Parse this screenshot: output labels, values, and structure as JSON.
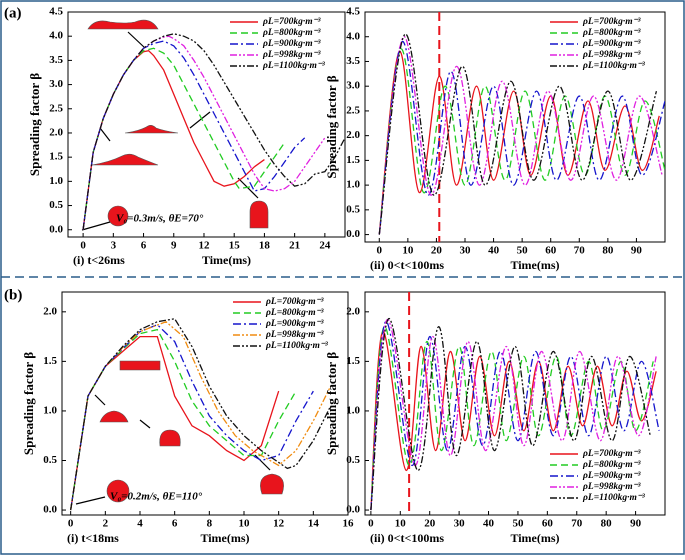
{
  "panel_labels": [
    "(a)",
    "(b)"
  ],
  "chart_data": [
    {
      "type": "line",
      "caption": "(i) t<26ms",
      "xlabel": "Time(ms)",
      "ylabel": "Spreading factor β",
      "annotation": "V₀=0.3m/s, θE=70°",
      "xlim": [
        -1.5,
        26
      ],
      "ylim": [
        -0.15,
        4.5
      ],
      "xticks": [
        0,
        3,
        6,
        9,
        12,
        15,
        18,
        21,
        24
      ],
      "yticks": [
        {
          "value": 0,
          "label": "0.0"
        },
        0.5,
        {
          "value": 1,
          "label": "1.0"
        },
        1.5,
        {
          "value": 2,
          "label": "2.0"
        },
        2.5,
        {
          "value": 3,
          "label": "3.0"
        },
        3.5,
        {
          "value": 4,
          "label": "4.0"
        },
        4.5
      ],
      "legend": "upper right",
      "smooth": false,
      "series": [
        {
          "name": "ρL=700kg·m⁻³",
          "color": "#e8141c",
          "dash": "solid",
          "x": [
            0,
            1,
            2,
            3,
            4,
            5,
            6,
            6.5,
            7,
            8,
            9,
            10,
            11,
            12,
            13,
            14,
            15,
            16,
            17,
            18
          ],
          "values": [
            0,
            1.6,
            2.3,
            2.8,
            3.2,
            3.5,
            3.68,
            3.7,
            3.6,
            3.3,
            2.8,
            2.3,
            1.8,
            1.4,
            1.0,
            0.9,
            0.95,
            1.1,
            1.3,
            1.45
          ]
        },
        {
          "name": "ρL=800kg·m⁻³",
          "color": "#22cc22",
          "dash": "dashed",
          "x": [
            0,
            1,
            2,
            3,
            4,
            5,
            6,
            7,
            8,
            9,
            10,
            11,
            12,
            13,
            14,
            15,
            15.5,
            17,
            18,
            19,
            20
          ],
          "values": [
            0,
            1.6,
            2.3,
            2.8,
            3.2,
            3.5,
            3.7,
            3.75,
            3.65,
            3.4,
            3.0,
            2.6,
            2.2,
            1.8,
            1.4,
            1.0,
            0.85,
            0.9,
            1.2,
            1.5,
            1.8
          ]
        },
        {
          "name": "ρL=900kg·m⁻³",
          "color": "#1515cc",
          "dash": "dashdot",
          "x": [
            0,
            1,
            2,
            3,
            4,
            5,
            6,
            7,
            8,
            9,
            10,
            11,
            12,
            13,
            14,
            15,
            16,
            17,
            18,
            19,
            20,
            21,
            22
          ],
          "values": [
            0,
            1.6,
            2.3,
            2.8,
            3.2,
            3.5,
            3.75,
            3.85,
            3.9,
            3.8,
            3.55,
            3.2,
            2.8,
            2.4,
            2.0,
            1.6,
            1.2,
            0.8,
            0.85,
            1.1,
            1.4,
            1.7,
            1.9
          ]
        },
        {
          "name": "ρL=998kg·m⁻³",
          "color": "#e020e0",
          "dash": "dashdotdot",
          "x": [
            0,
            1,
            2,
            3,
            4,
            5,
            6,
            7,
            8,
            8.5,
            9,
            10,
            11,
            12,
            13,
            14,
            15,
            16,
            17,
            18,
            19,
            20,
            21,
            22,
            23,
            24
          ],
          "values": [
            0,
            1.6,
            2.3,
            2.8,
            3.2,
            3.5,
            3.75,
            3.9,
            3.98,
            4.0,
            3.95,
            3.8,
            3.5,
            3.15,
            2.75,
            2.35,
            1.95,
            1.55,
            1.15,
            0.85,
            0.8,
            0.85,
            1.0,
            1.3,
            1.6,
            1.9
          ]
        },
        {
          "name": "ρL=1100kg·m⁻³",
          "color": "#111111",
          "dash": "dashdotdot",
          "x": [
            0,
            1,
            2,
            3,
            4,
            5,
            6,
            7,
            8,
            9,
            10,
            11,
            12,
            13,
            14,
            15,
            16,
            17,
            18,
            19,
            20,
            21,
            22,
            23,
            24,
            25,
            26
          ],
          "values": [
            0,
            1.6,
            2.3,
            2.8,
            3.2,
            3.5,
            3.75,
            3.9,
            4.0,
            4.05,
            4.0,
            3.9,
            3.7,
            3.4,
            3.05,
            2.7,
            2.35,
            2.0,
            1.65,
            1.35,
            1.1,
            0.9,
            0.95,
            1.15,
            1.2,
            1.5,
            1.9
          ]
        }
      ]
    },
    {
      "type": "line",
      "caption": "(ii) 0<t<100ms",
      "xlabel": "Time(ms)",
      "ylabel": "Spreading factor β",
      "xlim": [
        -5,
        100
      ],
      "ylim": [
        -0.15,
        4.5
      ],
      "xticks": [
        0,
        10,
        20,
        30,
        40,
        50,
        60,
        70,
        80,
        90
      ],
      "yticks": [
        {
          "value": 0,
          "label": "0.0"
        },
        0.5,
        {
          "value": 1,
          "label": "1.0"
        },
        1.5,
        {
          "value": 2,
          "label": "2.0"
        },
        2.5,
        {
          "value": 3,
          "label": "3.0"
        },
        3.5,
        {
          "value": 4,
          "label": "4.0"
        },
        4.5
      ],
      "legend": "upper right",
      "smooth": true,
      "vline": 21,
      "vline_color": "#e8141c",
      "series": [
        {
          "name": "ρL=700kg·m⁻³",
          "color": "#e8141c",
          "dash": "solid",
          "x": [
            0,
            7,
            14,
            21,
            27,
            34,
            40,
            47,
            53,
            60,
            66,
            73,
            79,
            86,
            92,
            98
          ],
          "values": [
            0,
            3.7,
            0.85,
            3.2,
            1.0,
            3.0,
            1.1,
            2.9,
            1.2,
            2.8,
            1.2,
            2.7,
            1.3,
            2.6,
            1.3,
            2.4
          ]
        },
        {
          "name": "ρL=800kg·m⁻³",
          "color": "#22cc22",
          "dash": "dashed",
          "x": [
            0,
            7.5,
            15.5,
            23,
            30,
            37,
            44,
            51,
            58,
            65,
            72,
            79,
            86,
            93,
            100
          ],
          "values": [
            0,
            3.75,
            0.85,
            3.0,
            1.0,
            3.0,
            1.1,
            2.9,
            1.1,
            2.8,
            1.2,
            2.8,
            1.2,
            2.7,
            1.3
          ]
        },
        {
          "name": "ρL=900kg·m⁻³",
          "color": "#1515cc",
          "dash": "dashdot",
          "x": [
            0,
            8,
            17,
            25,
            32,
            40,
            47,
            55,
            62,
            70,
            77,
            85,
            92,
            100
          ],
          "values": [
            0,
            3.9,
            0.8,
            3.3,
            1.0,
            3.0,
            1.0,
            2.9,
            1.1,
            2.8,
            1.1,
            2.8,
            1.2,
            2.7
          ]
        },
        {
          "name": "ρL=998kg·m⁻³",
          "color": "#e020e0",
          "dash": "dashdotdot",
          "x": [
            0,
            8.5,
            18,
            27,
            35,
            43,
            51,
            59,
            67,
            75,
            83,
            91,
            99
          ],
          "values": [
            0,
            4.0,
            0.8,
            3.4,
            1.0,
            3.1,
            1.0,
            2.9,
            1.1,
            2.8,
            1.1,
            2.8,
            1.2
          ]
        },
        {
          "name": "ρL=1100kg·m⁻³",
          "color": "#111111",
          "dash": "dashdotdot",
          "x": [
            0,
            9,
            19,
            29,
            37,
            46,
            54,
            63,
            71,
            80,
            88,
            97
          ],
          "values": [
            0,
            4.05,
            0.8,
            3.4,
            1.0,
            3.1,
            1.1,
            3.0,
            1.1,
            2.9,
            1.1,
            2.9
          ]
        }
      ]
    },
    {
      "type": "line",
      "caption": "(i) t<18ms",
      "xlabel": "Time(ms)",
      "ylabel": "Spreading factor β",
      "annotation": "V₀=0.2m/s, θE=110°",
      "xlim": [
        -0.5,
        16
      ],
      "ylim": [
        -0.05,
        2.2
      ],
      "xticks": [
        0,
        2,
        4,
        6,
        8,
        10,
        12,
        14,
        16
      ],
      "yticks": [
        {
          "value": 0,
          "label": "0.0"
        },
        0.5,
        {
          "value": 1,
          "label": "1.0"
        },
        1.5,
        {
          "value": 2,
          "label": "2.0"
        }
      ],
      "legend": "upper right",
      "smooth": false,
      "series": [
        {
          "name": "ρL=700kg·m⁻³",
          "color": "#e8141c",
          "dash": "solid",
          "x": [
            0,
            1,
            2,
            3,
            4,
            5,
            6,
            7,
            8,
            9,
            10,
            11,
            12
          ],
          "values": [
            0,
            1.15,
            1.45,
            1.6,
            1.75,
            1.75,
            1.15,
            0.85,
            0.75,
            0.6,
            0.5,
            0.65,
            1.2
          ]
        },
        {
          "name": "ρL=800kg·m⁻³",
          "color": "#22cc22",
          "dash": "dashed",
          "x": [
            0,
            1,
            2,
            3,
            4,
            5,
            6,
            7,
            8,
            9,
            10,
            11,
            12,
            13
          ],
          "values": [
            0,
            1.15,
            1.45,
            1.62,
            1.78,
            1.82,
            1.5,
            1.1,
            0.85,
            0.7,
            0.55,
            0.55,
            0.9,
            1.2
          ]
        },
        {
          "name": "ρL=900kg·m⁻³",
          "color": "#1515cc",
          "dash": "dashdot",
          "x": [
            0,
            1,
            2,
            3,
            4,
            5,
            6,
            7,
            8,
            9,
            10,
            11,
            12,
            13,
            14
          ],
          "values": [
            0,
            1.15,
            1.45,
            1.63,
            1.8,
            1.87,
            1.7,
            1.3,
            0.95,
            0.75,
            0.6,
            0.5,
            0.55,
            0.9,
            1.2
          ]
        },
        {
          "name": "ρL=998kg·m⁻³",
          "color": "#f08c10",
          "dash": "dashdotdot",
          "x": [
            0,
            1,
            2,
            3,
            4,
            5.5,
            6.5,
            7.5,
            8.5,
            9.5,
            10.5,
            12,
            13,
            14,
            15
          ],
          "values": [
            0,
            1.15,
            1.45,
            1.64,
            1.8,
            1.9,
            1.75,
            1.35,
            1.0,
            0.75,
            0.6,
            0.45,
            0.6,
            0.9,
            1.25
          ]
        },
        {
          "name": "ρL=1100kg·m⁻³",
          "color": "#111111",
          "dash": "dashdotdot",
          "x": [
            0,
            1,
            2,
            3,
            4,
            5,
            6,
            7,
            8,
            9,
            10,
            11,
            12.5,
            13,
            14,
            15
          ],
          "values": [
            0,
            1.15,
            1.45,
            1.65,
            1.82,
            1.9,
            1.93,
            1.65,
            1.25,
            0.95,
            0.75,
            0.6,
            0.42,
            0.45,
            0.7,
            1.05
          ]
        }
      ]
    },
    {
      "type": "line",
      "caption": "(ii) 0<t<100ms",
      "xlabel": "Time(ms)",
      "ylabel": "Spreading factor β",
      "xlim": [
        -2,
        100
      ],
      "ylim": [
        -0.05,
        2.2
      ],
      "xticks": [
        0,
        10,
        20,
        30,
        40,
        50,
        60,
        70,
        80,
        90
      ],
      "yticks": [
        {
          "value": 0,
          "label": "0.0"
        },
        0.5,
        {
          "value": 1,
          "label": "1.0"
        },
        1.5,
        {
          "value": 2,
          "label": "2.0"
        }
      ],
      "legend": "lower right",
      "smooth": true,
      "vline": 13,
      "vline_color": "#e8141c",
      "series": [
        {
          "name": "ρL=700kg·m⁻³",
          "color": "#e8141c",
          "dash": "solid",
          "x": [
            0,
            4,
            12,
            17,
            22,
            27,
            32,
            37,
            42,
            47,
            52,
            57,
            62,
            67,
            72,
            77,
            82,
            87,
            92,
            97
          ],
          "values": [
            0,
            1.8,
            0.4,
            1.65,
            0.6,
            1.6,
            0.7,
            1.55,
            0.75,
            1.5,
            0.8,
            1.5,
            0.8,
            1.45,
            0.85,
            1.45,
            0.85,
            1.4,
            0.9,
            1.4
          ]
        },
        {
          "name": "ρL=800kg·m⁻³",
          "color": "#22cc22",
          "dash": "dashed",
          "x": [
            0,
            4.5,
            13,
            19,
            24,
            30,
            35,
            41,
            46,
            52,
            57,
            63,
            68,
            74,
            79,
            85,
            90,
            96
          ],
          "values": [
            0,
            1.85,
            0.45,
            1.7,
            0.6,
            1.65,
            0.65,
            1.6,
            0.7,
            1.55,
            0.75,
            1.55,
            0.75,
            1.5,
            0.8,
            1.5,
            0.8,
            1.5
          ]
        },
        {
          "name": "ρL=900kg·m⁻³",
          "color": "#1515cc",
          "dash": "dashdot",
          "x": [
            0,
            5,
            14,
            20,
            26,
            32,
            38,
            44,
            50,
            56,
            62,
            68,
            74,
            80,
            86,
            92,
            98
          ],
          "values": [
            0,
            1.9,
            0.45,
            1.75,
            0.6,
            1.65,
            0.65,
            1.6,
            0.7,
            1.6,
            0.75,
            1.55,
            0.75,
            1.55,
            0.8,
            1.5,
            0.8
          ]
        },
        {
          "name": "ρL=998kg·m⁻³",
          "color": "#e020e0",
          "dash": "dashdotdot",
          "x": [
            0,
            5.5,
            15,
            21,
            27,
            33,
            39,
            46,
            52,
            58,
            65,
            71,
            78,
            84,
            91,
            97
          ],
          "values": [
            0,
            1.92,
            0.45,
            1.75,
            0.55,
            1.7,
            0.6,
            1.65,
            0.65,
            1.6,
            0.7,
            1.6,
            0.7,
            1.55,
            0.75,
            1.55
          ]
        },
        {
          "name": "ρL=1100kg·m⁻³",
          "color": "#111111",
          "dash": "dashdotdot",
          "x": [
            0,
            6,
            16,
            23,
            29,
            36,
            42,
            49,
            55,
            62,
            69,
            75,
            82,
            88,
            95
          ],
          "values": [
            0,
            1.93,
            0.4,
            1.85,
            0.55,
            1.7,
            0.6,
            1.65,
            0.65,
            1.6,
            0.7,
            1.55,
            0.7,
            1.55,
            0.75
          ]
        }
      ]
    }
  ]
}
